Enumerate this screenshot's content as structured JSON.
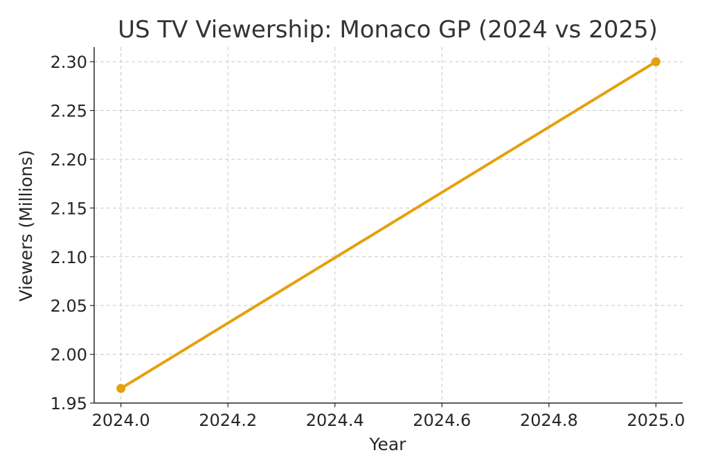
{
  "chart_data": {
    "type": "line",
    "title": "US TV Viewership: Monaco GP (2024 vs 2025)",
    "xlabel": "Year",
    "ylabel": "Viewers (Millions)",
    "xlim": [
      2023.95,
      2025.05
    ],
    "ylim": [
      1.95,
      2.315
    ],
    "x_ticks": [
      2024.0,
      2024.2,
      2024.4,
      2024.6,
      2024.8,
      2025.0
    ],
    "x_tick_labels": [
      "2024.0",
      "2024.2",
      "2024.4",
      "2024.6",
      "2024.8",
      "2025.0"
    ],
    "y_ticks": [
      1.95,
      2.0,
      2.05,
      2.1,
      2.15,
      2.2,
      2.25,
      2.3
    ],
    "y_tick_labels": [
      "1.95",
      "2.00",
      "2.05",
      "2.10",
      "2.15",
      "2.20",
      "2.25",
      "2.30"
    ],
    "grid": true,
    "series": [
      {
        "x": [
          2024,
          2025
        ],
        "values": [
          1.965,
          2.3
        ],
        "color": "#e5a00d",
        "marker": "circle"
      }
    ]
  }
}
